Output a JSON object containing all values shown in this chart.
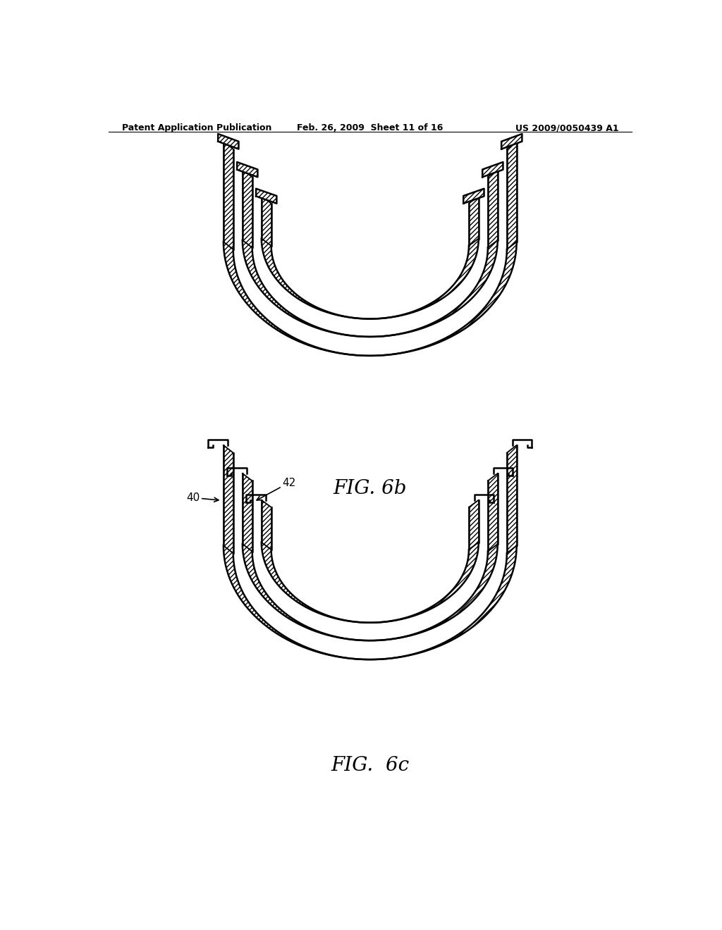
{
  "header_left": "Patent Application Publication",
  "header_mid": "Feb. 26, 2009  Sheet 11 of 16",
  "header_right": "US 2009/0050439 A1",
  "fig_top_label": "FIG. 6b",
  "fig_bot_label": "FIG.  6c",
  "label_40": "40",
  "label_42": "42",
  "bg_color": "#ffffff",
  "line_color": "#000000"
}
